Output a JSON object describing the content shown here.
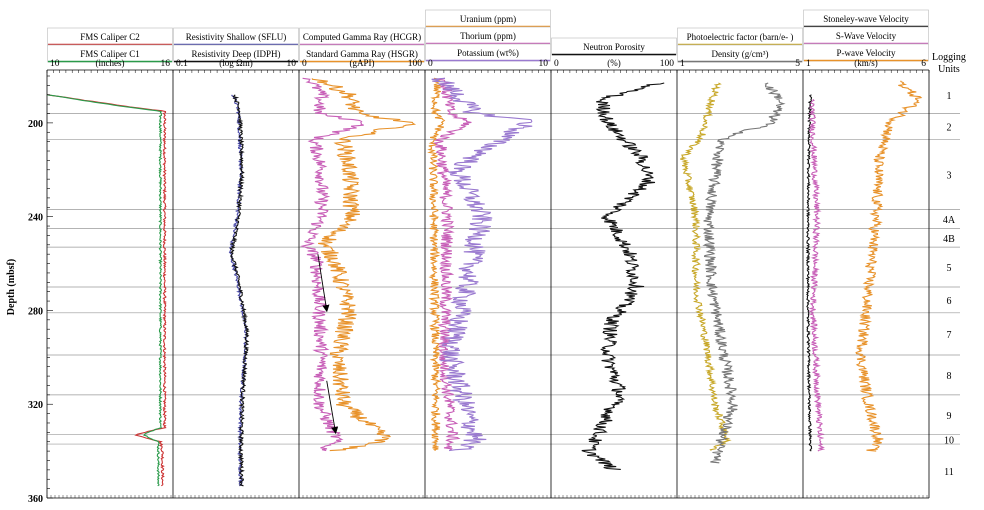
{
  "chart_data": {
    "type": "line",
    "depth_axis": {
      "label": "Depth (mbsf)",
      "range": [
        180,
        360
      ],
      "ticks": [
        "200",
        "240",
        "280",
        "320",
        "360"
      ],
      "tick_values": [
        200,
        240,
        280,
        320,
        360
      ]
    },
    "logging_units": {
      "title": "Logging Units",
      "boundaries": [
        180,
        196,
        207,
        237,
        245,
        253,
        270,
        281,
        299,
        316,
        333,
        337,
        360
      ],
      "labels": [
        "1",
        "2",
        "3",
        "4A",
        "4B",
        "5",
        "6",
        "7",
        "8",
        "9",
        "10",
        "11"
      ]
    },
    "annotations": [
      {
        "type": "arrow",
        "track": 2,
        "from": {
          "value": 15,
          "depth": 256
        },
        "to": {
          "value": 22,
          "depth": 280
        }
      },
      {
        "type": "arrow",
        "track": 2,
        "from": {
          "value": 22,
          "depth": 310
        },
        "to": {
          "value": 29,
          "depth": 332
        }
      }
    ],
    "colors": {
      "red": "#cc3333",
      "green": "#2a9a4a",
      "black": "#111111",
      "blue": "#4a4aa8",
      "orange": "#e8922a",
      "magenta": "#c860b8",
      "purple": "#9a7ad0",
      "olive": "#c8a82a",
      "gray": "#777777"
    },
    "tracks": [
      {
        "headers": [
          {
            "text": "FMS Caliper C2",
            "color": "red"
          },
          {
            "text": "FMS Caliper C1",
            "color": "green"
          }
        ],
        "units": "(inches)",
        "min_label": "10",
        "max_label": "16",
        "min": 10,
        "max": 16,
        "scale": "linear",
        "series": [
          {
            "color": "red",
            "kind": "caliper",
            "depth": [
              188,
              193,
              195,
              330,
              333,
              336,
              340,
              355
            ],
            "value": [
              10.0,
              13.8,
              15.6,
              15.6,
              14.2,
              15.4,
              15.5,
              15.5
            ],
            "noise": 0.06
          },
          {
            "color": "green",
            "kind": "caliper",
            "depth": [
              188,
              193,
              195,
              330,
              333,
              336,
              340,
              355
            ],
            "value": [
              10.0,
              13.6,
              15.4,
              15.4,
              14.6,
              15.3,
              15.3,
              15.3
            ],
            "noise": 0.05
          }
        ]
      },
      {
        "headers": [
          {
            "text": "Resistivity Shallow (SFLU)",
            "color": "blue"
          },
          {
            "text": "Resistivity Deep (IDPH)",
            "color": "black"
          }
        ],
        "units": "(log Ωm)",
        "min_label": "0.1",
        "max_label": "10",
        "min": 0.1,
        "max": 10,
        "scale": "log",
        "series": [
          {
            "color": "blue",
            "depth": [
              188,
              195,
              220,
              240,
              255,
              270,
              290,
              320,
              340,
              355
            ],
            "value": [
              0.9,
              1.1,
              1.2,
              1.05,
              0.8,
              1.1,
              1.45,
              1.2,
              1.15,
              1.2
            ],
            "noise": 0.06
          },
          {
            "color": "black",
            "depth": [
              188,
              195,
              220,
              240,
              255,
              270,
              290,
              320,
              340,
              355
            ],
            "value": [
              0.95,
              1.15,
              1.25,
              1.1,
              0.85,
              1.15,
              1.5,
              1.25,
              1.2,
              1.25
            ],
            "noise": 0.07
          }
        ]
      },
      {
        "headers": [
          {
            "text": "Computed Gamma Ray (HCGR)",
            "color": "magenta"
          },
          {
            "text": "Standard Gamma Ray (HSGR)",
            "color": "orange"
          }
        ],
        "units": "(gAPI)",
        "min_label": "0",
        "max_label": "100",
        "min": 0,
        "max": 100,
        "scale": "linear",
        "series": [
          {
            "color": "magenta",
            "depth": [
              181,
              188,
              196,
              200,
              207,
              220,
              240,
              252,
              258,
              280,
              300,
              320,
              335,
              340
            ],
            "value": [
              8,
              18,
              15,
              55,
              12,
              18,
              18,
              6,
              14,
              16,
              18,
              16,
              30,
              18
            ],
            "noise": 5.5
          },
          {
            "color": "orange",
            "depth": [
              181,
              188,
              196,
              200,
              207,
              220,
              240,
              252,
              258,
              280,
              300,
              320,
              335,
              340
            ],
            "value": [
              15,
              40,
              45,
              90,
              35,
              40,
              42,
              20,
              28,
              40,
              30,
              35,
              70,
              28
            ],
            "noise": 7.0
          }
        ]
      },
      {
        "headers": [
          {
            "text": "Uranium (ppm)",
            "color": "orange"
          },
          {
            "text": "Thorium (ppm)",
            "color": "magenta"
          },
          {
            "text": "Potassium (wt%)",
            "color": "purple"
          }
        ],
        "units": "",
        "min_label": "0",
        "max_label": "10",
        "min": 0,
        "max": 10,
        "scale": "linear",
        "series": [
          {
            "color": "orange",
            "depth": [
              181,
              196,
              200,
              207,
              240,
              340
            ],
            "value": [
              1.0,
              0.8,
              1.4,
              0.6,
              0.7,
              0.9
            ],
            "noise": 0.35
          },
          {
            "color": "magenta",
            "depth": [
              181,
              196,
              200,
              207,
              240,
              300,
              335,
              340
            ],
            "value": [
              1.5,
              2.0,
              3.5,
              1.2,
              1.8,
              1.5,
              2.2,
              1.6
            ],
            "noise": 0.5
          },
          {
            "color": "purple",
            "depth": [
              181,
              196,
              199,
              207,
              220,
              240,
              300,
              335,
              340
            ],
            "value": [
              1.2,
              4.0,
              8.5,
              6.0,
              2.5,
              4.5,
              2.0,
              4.0,
              2.5
            ],
            "noise": 0.9
          }
        ]
      },
      {
        "headers": [
          {
            "text": "Neutron Porosity",
            "color": "black"
          }
        ],
        "units": "(%)",
        "min_label": "0",
        "max_label": "100",
        "min": 0,
        "max": 100,
        "scale": "linear",
        "series": [
          {
            "color": "black",
            "depth": [
              183,
              190,
              200,
              215,
              225,
              240,
              255,
              270,
              285,
              300,
              315,
              330,
              340,
              348
            ],
            "value": [
              85,
              40,
              45,
              72,
              78,
              45,
              62,
              68,
              48,
              45,
              55,
              40,
              30,
              50
            ],
            "noise": 6.0
          }
        ]
      },
      {
        "headers": [
          {
            "text": "Photoelectric factor (barn/e- )",
            "color": "olive"
          },
          {
            "text": "Density (g/cm³)",
            "color": "gray"
          }
        ],
        "units": "",
        "min_label": "1",
        "max_label": "5",
        "min": 1,
        "max": 5,
        "scale": "linear",
        "series": [
          {
            "color": "olive",
            "depth": [
              183,
              195,
              205,
              215,
              240,
              270,
              300,
              320,
              335,
              340
            ],
            "value": [
              2.3,
              2.0,
              1.8,
              1.2,
              1.6,
              1.6,
              2.0,
              2.2,
              2.6,
              2.1
            ],
            "noise": 0.12
          },
          {
            "color": "gray",
            "depth": [
              183,
              190,
              200,
              207,
              215,
              240,
              270,
              300,
              320,
              335,
              345
            ],
            "value": [
              3.8,
              4.3,
              4.0,
              2.4,
              2.3,
              2.0,
              2.1,
              2.5,
              2.8,
              2.4,
              2.2
            ],
            "noise": 0.18
          }
        ]
      },
      {
        "headers": [
          {
            "text": "Stoneley-wave Velocity",
            "color": "black"
          },
          {
            "text": "S-Wave Velocity",
            "color": "magenta"
          },
          {
            "text": "P-wave Velocity",
            "color": "orange"
          }
        ],
        "units": "(km/s)",
        "min_label": "1",
        "max_label": "6",
        "min": 1,
        "max": 6,
        "scale": "linear",
        "series": [
          {
            "color": "black",
            "depth": [
              188,
              200,
              240,
              280,
              320,
              340
            ],
            "value": [
              1.3,
              1.25,
              1.2,
              1.2,
              1.25,
              1.3
            ],
            "noise": 0.05
          },
          {
            "color": "magenta",
            "depth": [
              190,
              207,
              240,
              280,
              320,
              340
            ],
            "value": [
              1.35,
              1.4,
              1.55,
              1.4,
              1.6,
              1.7
            ],
            "noise": 0.12
          },
          {
            "color": "orange",
            "depth": [
              182,
              190,
              200,
              215,
              240,
              270,
              300,
              320,
              335,
              340
            ],
            "value": [
              4.8,
              5.6,
              4.5,
              4.0,
              3.9,
              3.6,
              3.3,
              3.6,
              4.0,
              3.7
            ],
            "noise": 0.22
          }
        ]
      }
    ]
  }
}
